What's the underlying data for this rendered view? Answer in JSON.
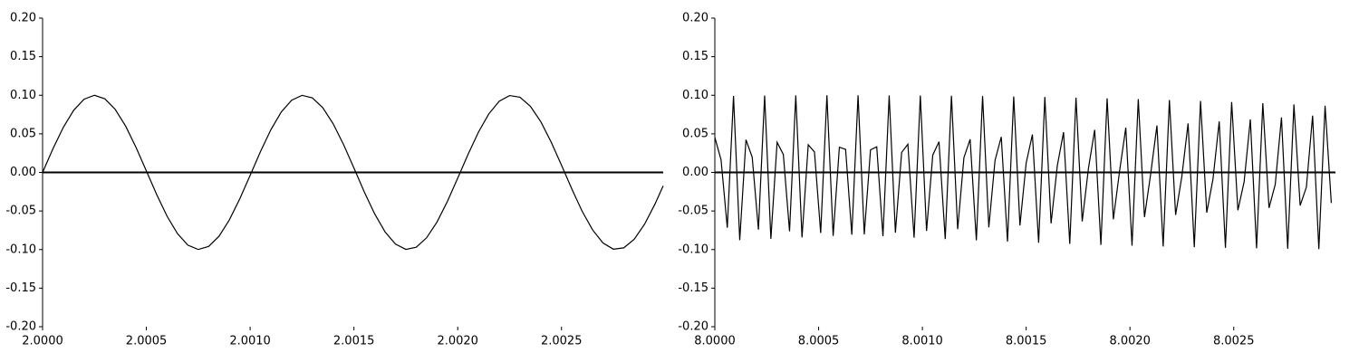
{
  "chart_data": [
    {
      "type": "line",
      "x": [
        2,
        2.00005,
        2.0001,
        2.00015,
        2.0002,
        2.00025,
        2.0003,
        2.00035,
        2.0004,
        2.00045,
        2.0005,
        2.00055,
        2.0006,
        2.00065,
        2.0007,
        2.00075,
        2.0008,
        2.00085,
        2.0009,
        2.00095,
        2.001,
        2.00105,
        2.0011,
        2.00115,
        2.0012,
        2.00125,
        2.0013,
        2.00135,
        2.0014,
        2.00145,
        2.0015,
        2.00155,
        2.0016,
        2.00165,
        2.0017,
        2.00175,
        2.0018,
        2.00185,
        2.0019,
        2.00195,
        2.002,
        2.00205,
        2.0021,
        2.00215,
        2.0022,
        2.00225,
        2.0023,
        2.00235,
        2.0024,
        2.00245,
        2.0025,
        2.00255,
        2.0026,
        2.00265,
        2.0027,
        2.00275,
        2.0028,
        2.00285,
        2.0029,
        2.00295,
        2.00299
      ],
      "series": [
        {
          "color": "#000000",
          "values": [
            0,
            0.0307,
            0.0585,
            0.0806,
            0.0949,
            0.1,
            0.0954,
            0.0817,
            0.06,
            0.0325,
            0.0019,
            -0.0289,
            -0.0569,
            -0.0794,
            -0.0943,
            -0.0999,
            -0.096,
            -0.0828,
            -0.0615,
            -0.0343,
            -0.0038,
            0.0271,
            0.0554,
            0.0783,
            0.0936,
            0.0999,
            0.0965,
            0.0838,
            0.063,
            0.0361,
            0.0057,
            -0.0253,
            -0.0538,
            -0.0771,
            -0.0929,
            -0.0998,
            -0.097,
            -0.0848,
            -0.0644,
            -0.0378,
            -0.0075,
            0.0235,
            0.0522,
            0.0759,
            0.0922,
            0.0996,
            0.0974,
            0.0858,
            0.0659,
            0.0395,
            0.0094,
            -0.0216,
            -0.0506,
            -0.0746,
            -0.0915,
            -0.0995,
            -0.0978,
            -0.0867,
            -0.0673,
            -0.0413,
            -0.0174
          ]
        }
      ],
      "xlim": [
        2,
        2.00299
      ],
      "xticks": [
        {
          "value": 2,
          "label": "2.0000"
        },
        {
          "value": 2.0005,
          "label": "2.0005"
        },
        {
          "value": 2.001,
          "label": "2.0010"
        },
        {
          "value": 2.0015,
          "label": "2.0015"
        },
        {
          "value": 2.002,
          "label": "2.0020"
        },
        {
          "value": 2.0025,
          "label": "2.0025"
        }
      ],
      "ylim": [
        -0.2,
        0.2
      ],
      "yticks": [
        {
          "value": -0.2,
          "label": "-0.20"
        },
        {
          "value": -0.15,
          "label": "-0.15"
        },
        {
          "value": -0.1,
          "label": "-0.10"
        },
        {
          "value": -0.05,
          "label": "-0.05"
        },
        {
          "value": 0,
          "label": "0.00"
        },
        {
          "value": 0.05,
          "label": "0.05"
        },
        {
          "value": 0.1,
          "label": "0.10"
        },
        {
          "value": 0.15,
          "label": "0.15"
        },
        {
          "value": 0.2,
          "label": "0.20"
        }
      ],
      "grid": false
    },
    {
      "type": "line",
      "x": [
        8,
        8.00003,
        8.00006,
        8.00009,
        8.00012,
        8.00015,
        8.00018,
        8.00021,
        8.00024,
        8.00027,
        8.0003,
        8.00033,
        8.00036,
        8.00039,
        8.00042,
        8.00045,
        8.00048,
        8.00051,
        8.00054,
        8.00057,
        8.0006,
        8.00063,
        8.00066,
        8.00069,
        8.00072,
        8.00075,
        8.00078,
        8.00081,
        8.00084,
        8.00087,
        8.0009,
        8.00093,
        8.00096,
        8.00099,
        8.00102,
        8.00105,
        8.00108,
        8.00111,
        8.00114,
        8.00117,
        8.0012,
        8.00123,
        8.00126,
        8.00129,
        8.00132,
        8.00135,
        8.00138,
        8.00141,
        8.00144,
        8.00147,
        8.0015,
        8.00153,
        8.00156,
        8.00159,
        8.00162,
        8.00165,
        8.00168,
        8.00171,
        8.00174,
        8.00177,
        8.0018,
        8.00183,
        8.00186,
        8.00189,
        8.00192,
        8.00195,
        8.00198,
        8.00201,
        8.00204,
        8.00207,
        8.0021,
        8.00213,
        8.00216,
        8.00219,
        8.00222,
        8.00225,
        8.00228,
        8.00231,
        8.00234,
        8.00237,
        8.0024,
        8.00243,
        8.00246,
        8.00249,
        8.00252,
        8.00255,
        8.00258,
        8.00261,
        8.00264,
        8.00267,
        8.0027,
        8.00273,
        8.00276,
        8.00279,
        8.00282,
        8.00285,
        8.00288,
        8.00291,
        8.00294,
        8.00297
      ],
      "series": [
        {
          "color": "#000000",
          "values": [
            0.0454,
            0.0163,
            -0.0717,
            0.0991,
            -0.0878,
            0.0423,
            0.0198,
            -0.0741,
            0.0995,
            -0.0861,
            0.0391,
            0.0232,
            -0.0764,
            0.0998,
            -0.0843,
            0.0358,
            0.0266,
            -0.0786,
            0.1,
            -0.0823,
            0.0326,
            0.0299,
            -0.0807,
            0.1,
            -0.0803,
            0.0292,
            0.0332,
            -0.0827,
            0.0999,
            -0.0781,
            0.0259,
            0.0365,
            -0.0846,
            0.0997,
            -0.0759,
            0.0225,
            0.0397,
            -0.0864,
            0.0994,
            -0.0736,
            0.0191,
            0.0429,
            -0.0881,
            0.099,
            -0.0712,
            0.0156,
            0.046,
            -0.0897,
            0.0984,
            -0.0687,
            0.0122,
            0.0491,
            -0.0912,
            0.0977,
            -0.0661,
            0.0087,
            0.0521,
            -0.0926,
            0.0969,
            -0.0635,
            0.0052,
            0.0551,
            -0.0939,
            0.096,
            -0.0608,
            0.0017,
            0.0579,
            -0.095,
            0.095,
            -0.0579,
            -0.0017,
            0.0607,
            -0.096,
            0.0938,
            -0.0551,
            -0.0052,
            0.0635,
            -0.0969,
            0.0926,
            -0.0521,
            -0.0087,
            0.0661,
            -0.0977,
            0.0912,
            -0.0491,
            -0.0122,
            0.0687,
            -0.0984,
            0.0897,
            -0.046,
            -0.0156,
            0.0712,
            -0.099,
            0.0881,
            -0.0429,
            -0.0191,
            0.0736,
            -0.0994,
            0.0864,
            -0.0397
          ]
        }
      ],
      "xlim": [
        8,
        8.00299
      ],
      "xticks": [
        {
          "value": 8,
          "label": "8.0000"
        },
        {
          "value": 8.0005,
          "label": "8.0005"
        },
        {
          "value": 8.001,
          "label": "8.0010"
        },
        {
          "value": 8.0015,
          "label": "8.0015"
        },
        {
          "value": 8.002,
          "label": "8.0020"
        },
        {
          "value": 8.0025,
          "label": "8.0025"
        }
      ],
      "ylim": [
        -0.2,
        0.2
      ],
      "yticks": [
        {
          "value": -0.2,
          "label": "-0.20"
        },
        {
          "value": -0.15,
          "label": "-0.15"
        },
        {
          "value": -0.1,
          "label": "-0.10"
        },
        {
          "value": -0.05,
          "label": "-0.05"
        },
        {
          "value": 0,
          "label": "0.00"
        },
        {
          "value": 0.05,
          "label": "0.05"
        },
        {
          "value": 0.1,
          "label": "0.10"
        },
        {
          "value": 0.15,
          "label": "0.15"
        },
        {
          "value": 0.2,
          "label": "0.20"
        }
      ],
      "grid": false
    }
  ]
}
